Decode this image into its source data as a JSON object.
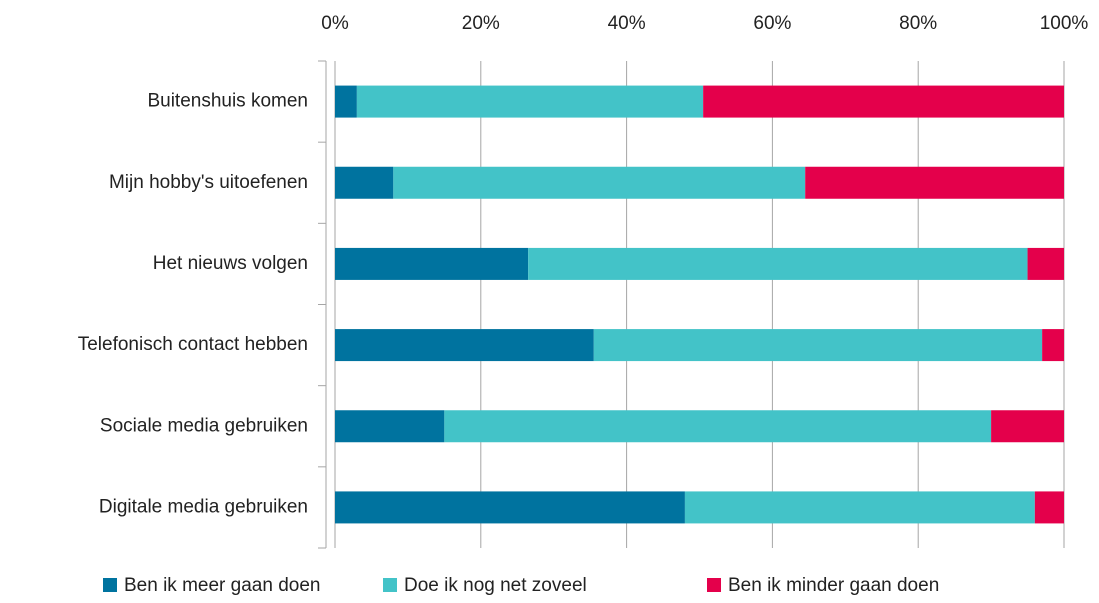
{
  "chart_data": {
    "type": "stacked_bar_horizontal",
    "categories": [
      "Buitenshuis komen",
      "Mijn hobby's uitoefenen",
      "Het nieuws volgen",
      "Telefonisch contact hebben",
      "Sociale media gebruiken",
      "Digitale media gebruiken"
    ],
    "series": [
      {
        "name": "Ben ik meer gaan doen",
        "color": "#00739f",
        "values": [
          3,
          8,
          26.5,
          35.5,
          15,
          48
        ]
      },
      {
        "name": "Doe ik nog net zoveel",
        "color": "#43c3c8",
        "values": [
          47.5,
          56.5,
          68.5,
          61.5,
          75,
          48
        ]
      },
      {
        "name": "Ben ik minder gaan doen",
        "color": "#e4004b",
        "values": [
          49.5,
          35.5,
          5,
          3,
          10,
          4
        ]
      }
    ],
    "xlim": [
      0,
      100
    ],
    "xticks": [
      {
        "value": 0,
        "label": "0%"
      },
      {
        "value": 20,
        "label": "20%"
      },
      {
        "value": 40,
        "label": "40%"
      },
      {
        "value": 60,
        "label": "60%"
      },
      {
        "value": 80,
        "label": "80%"
      },
      {
        "value": 100,
        "label": "100%"
      }
    ],
    "grid": true,
    "legend": "bottom"
  }
}
